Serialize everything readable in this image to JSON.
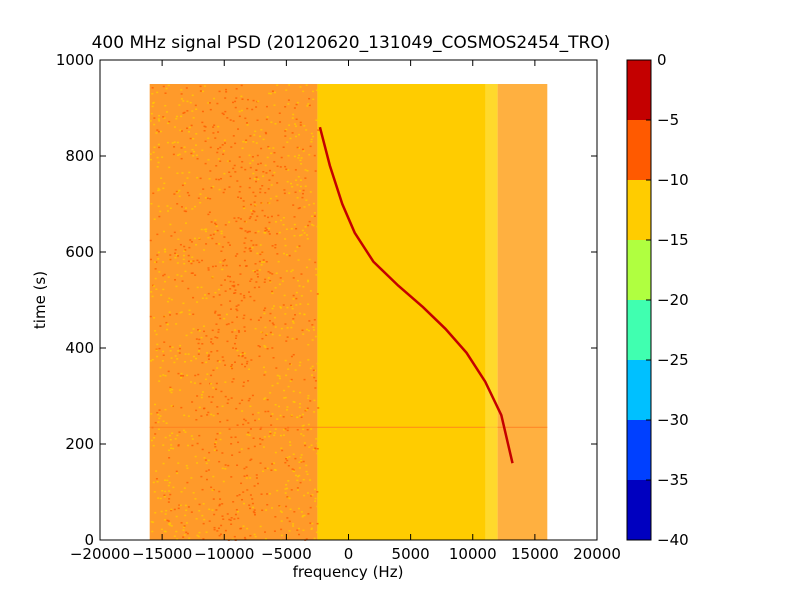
{
  "chart_data": {
    "type": "heatmap",
    "title": "400 MHz signal PSD (20120620_131049_COSMOS2454_TRO)",
    "xlabel": "frequency (Hz)",
    "ylabel": "time (s)",
    "xlim": [
      -20000,
      20000
    ],
    "ylim": [
      0,
      1000
    ],
    "xticks": [
      -20000,
      -15000,
      -10000,
      -5000,
      0,
      5000,
      10000,
      15000,
      20000
    ],
    "xtick_labels": [
      "−20000",
      "−15000",
      "−10000",
      "−5000",
      "0",
      "5000",
      "10000",
      "15000",
      "20000"
    ],
    "yticks": [
      0,
      200,
      400,
      600,
      800,
      1000
    ],
    "ytick_labels": [
      "0",
      "200",
      "400",
      "600",
      "800",
      "1000"
    ],
    "data_extent": {
      "freq_range": [
        -16000,
        16000
      ],
      "time_range": [
        0,
        950
      ]
    },
    "colorbar": {
      "range": [
        -40,
        0
      ],
      "levels": [
        -40,
        -35,
        -30,
        -25,
        -20,
        -15,
        -10,
        -5,
        0
      ],
      "tick_labels": [
        "−40",
        "−35",
        "−30",
        "−25",
        "−20",
        "−15",
        "−10",
        "−5",
        "0"
      ],
      "colors": [
        "#0000c0",
        "#0040ff",
        "#00c0ff",
        "#40ffb0",
        "#b0ff40",
        "#ffcc00",
        "#ff5a00",
        "#c40000"
      ]
    },
    "background_level_bands": [
      {
        "freq_range": [
          -16000,
          -2500
        ],
        "level": -8,
        "note_color": "#ff9a2a"
      },
      {
        "freq_range": [
          -2500,
          12000
        ],
        "level": -12,
        "note_color": "#ffcc00"
      },
      {
        "freq_range": [
          12000,
          16000
        ],
        "level": -10,
        "note_color": "#ffb040"
      }
    ],
    "signal_trace": {
      "level": -3,
      "points": [
        {
          "freq": -2300,
          "time": 860
        },
        {
          "freq": -1500,
          "time": 780
        },
        {
          "freq": -500,
          "time": 700
        },
        {
          "freq": 500,
          "time": 640
        },
        {
          "freq": 2000,
          "time": 580
        },
        {
          "freq": 4000,
          "time": 530
        },
        {
          "freq": 6000,
          "time": 485
        },
        {
          "freq": 7800,
          "time": 440
        },
        {
          "freq": 9500,
          "time": 390
        },
        {
          "freq": 11000,
          "time": 330
        },
        {
          "freq": 12300,
          "time": 260
        },
        {
          "freq": 13200,
          "time": 160
        }
      ]
    }
  }
}
